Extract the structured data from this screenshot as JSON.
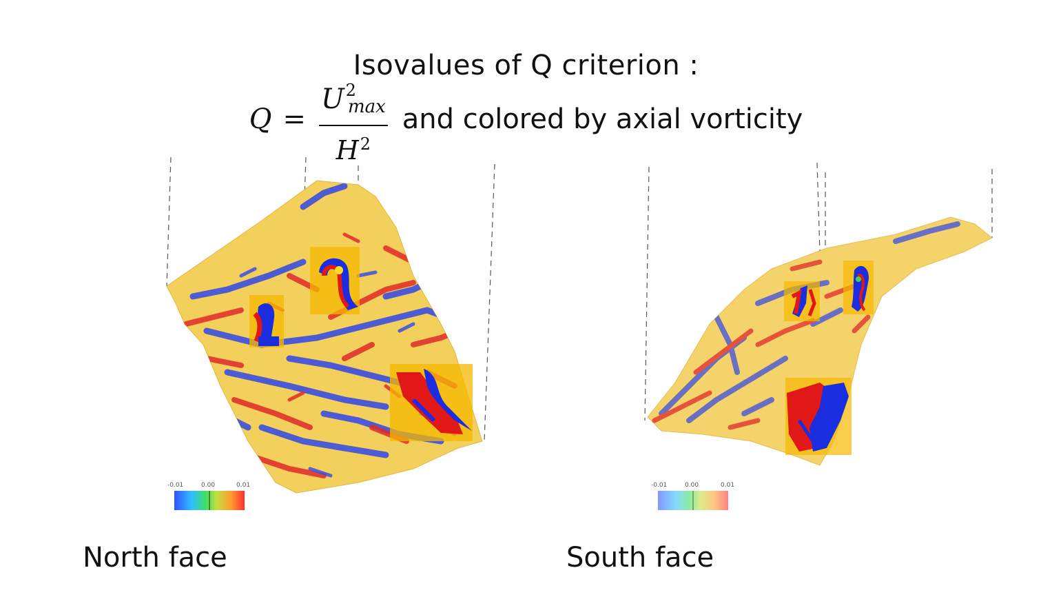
{
  "title": {
    "line1": "Isovalues of Q criterion :",
    "formula_lhs": "Q",
    "formula_eq": "=",
    "numerator_base": "U",
    "numerator_sup": "2",
    "numerator_sub": "max",
    "denominator_base": "H",
    "denominator_sup": "2",
    "line2_text": "and colored by axial vorticity"
  },
  "panels": [
    {
      "label": "North face",
      "colorbar": {
        "ticks": [
          "-0.01",
          "0.00",
          "0.01"
        ],
        "opacity": 1.0
      }
    },
    {
      "label": "South face",
      "colorbar": {
        "ticks": [
          "-0.01",
          "0.00",
          "0.01"
        ],
        "opacity": 0.6
      }
    }
  ],
  "colors": {
    "surface": "#f3cf5c",
    "negative_vorticity": "#3040e0",
    "positive_vorticity": "#e02020",
    "zoom_box": "#f5b800"
  },
  "colormap": [
    "#3050ff",
    "#30c0ff",
    "#40e060",
    "#c0e040",
    "#ffa030",
    "#ff3030"
  ]
}
